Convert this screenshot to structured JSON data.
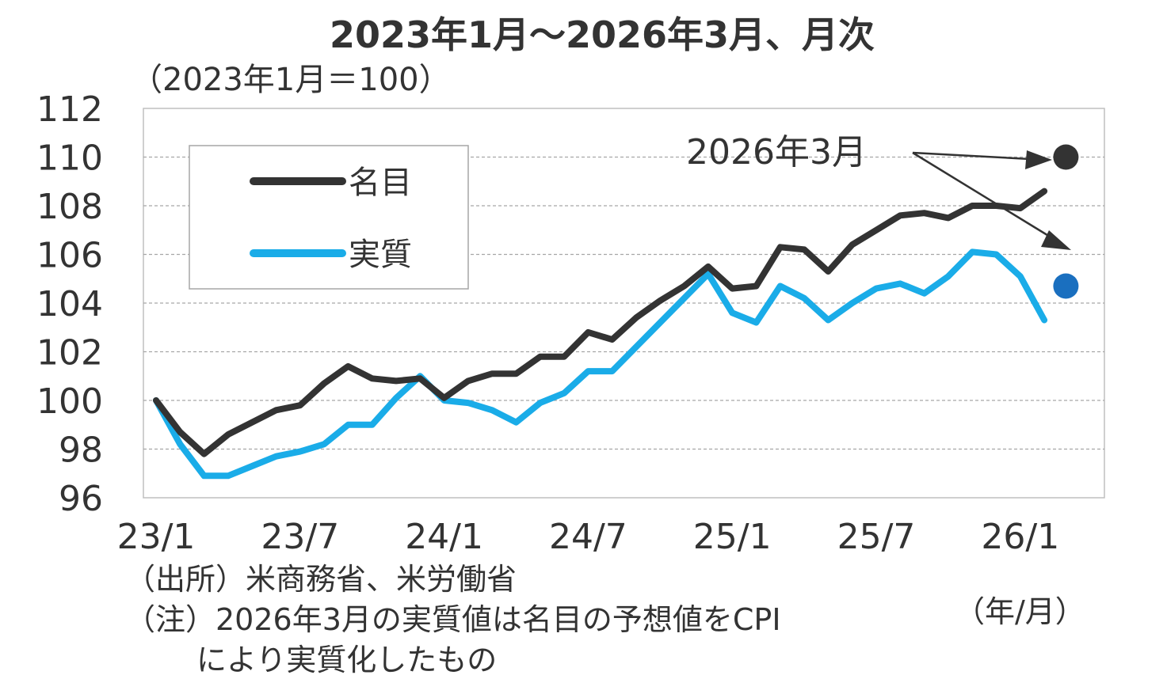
{
  "chart_data": {
    "type": "line",
    "title": "2023年1月～2026年3月、月次",
    "ylabel": "（2023年1月＝100）",
    "xlabel": "（年/月）",
    "ylim": [
      96,
      112
    ],
    "yticks": [
      "96",
      "98",
      "100",
      "102",
      "104",
      "106",
      "108",
      "110",
      "112"
    ],
    "xticks": [
      {
        "label": "23/1",
        "index": 0
      },
      {
        "label": "23/7",
        "index": 6
      },
      {
        "label": "24/1",
        "index": 12
      },
      {
        "label": "24/7",
        "index": 18
      },
      {
        "label": "25/1",
        "index": 24
      },
      {
        "label": "25/7",
        "index": 30
      },
      {
        "label": "26/1",
        "index": 36
      }
    ],
    "grid": true,
    "legend": "top-left",
    "series": [
      {
        "name": "名目",
        "color": "#333333",
        "values": [
          100.0,
          98.7,
          97.8,
          98.6,
          99.1,
          99.6,
          99.8,
          100.7,
          101.4,
          100.9,
          100.8,
          100.9,
          100.1,
          100.8,
          101.1,
          101.1,
          101.8,
          101.8,
          102.8,
          102.5,
          103.4,
          104.1,
          104.7,
          105.5,
          104.6,
          104.7,
          106.3,
          106.2,
          105.3,
          106.4,
          107.0,
          107.6,
          107.7,
          107.5,
          108.0,
          108.0,
          107.9,
          108.6
        ],
        "forecast": {
          "index": 38,
          "value": 110.0
        }
      },
      {
        "name": "実質",
        "color": "#1aace8",
        "values": [
          100.0,
          98.2,
          96.9,
          96.9,
          97.3,
          97.7,
          97.9,
          98.2,
          99.0,
          99.0,
          100.1,
          101.0,
          100.0,
          99.9,
          99.6,
          99.1,
          99.9,
          100.3,
          101.2,
          101.2,
          102.2,
          103.2,
          104.2,
          105.2,
          103.6,
          103.2,
          104.7,
          104.2,
          103.3,
          104.0,
          104.6,
          104.8,
          104.4,
          105.1,
          106.1,
          106.0,
          105.1,
          103.3
        ],
        "forecast": {
          "index": 38,
          "value": 104.7
        }
      }
    ],
    "annotation": "2026年3月",
    "forecast_colors": [
      "#333333",
      "#1a6fbf"
    ]
  },
  "footnotes": {
    "source": "（出所）米商務省、米労働省",
    "note_line1": "（注）2026年3月の実質値は名目の予想値をCPI",
    "note_line2": "により実質化したもの"
  }
}
